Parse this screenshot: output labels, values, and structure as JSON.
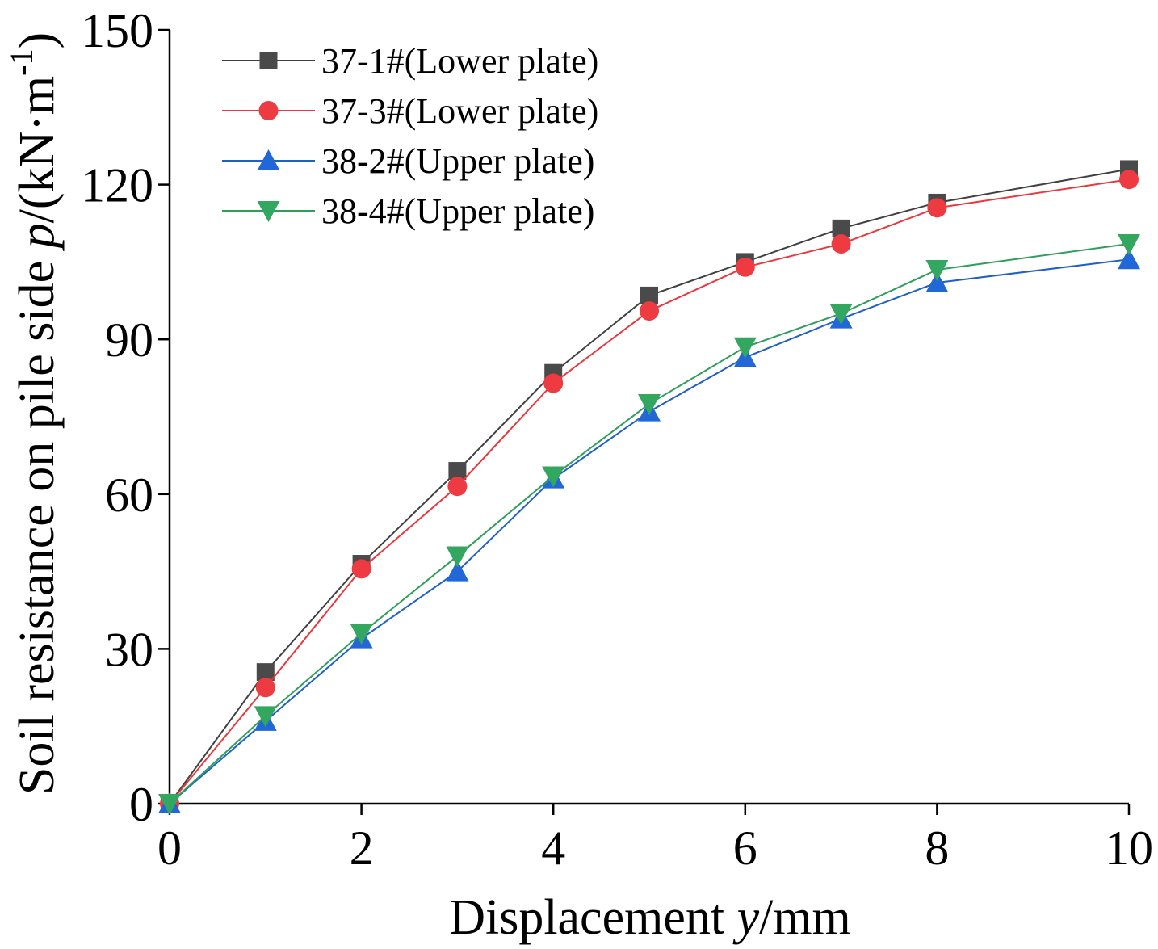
{
  "chart_data": {
    "type": "line",
    "x": [
      0,
      1,
      2,
      3,
      4,
      5,
      6,
      7,
      8,
      10
    ],
    "series": [
      {
        "name": "37-1#(Lower plate)",
        "marker": "square",
        "color": "#404040",
        "marker_color": "#4a4a4a",
        "values": [
          0,
          25.5,
          46.5,
          64.5,
          83.5,
          98.5,
          105,
          111.5,
          116.5,
          123
        ]
      },
      {
        "name": "37-3#(Lower plate)",
        "marker": "circle",
        "color": "#e8383d",
        "marker_color": "#ee3b41",
        "values": [
          0,
          22.5,
          45.5,
          61.5,
          81.5,
          95.5,
          104,
          108.5,
          115.5,
          121
        ]
      },
      {
        "name": "38-2#(Upper plate)",
        "marker": "triangle-up",
        "color": "#1f5fc8",
        "marker_color": "#2167d8",
        "values": [
          0,
          16,
          32,
          45,
          63,
          76,
          86.5,
          94,
          101,
          105.5
        ]
      },
      {
        "name": "38-4#(Upper plate)",
        "marker": "triangle-down",
        "color": "#2e9e5b",
        "marker_color": "#33a660",
        "values": [
          0,
          17,
          33,
          48,
          63.5,
          77.5,
          88.5,
          95,
          103.5,
          108.5
        ]
      }
    ],
    "xlabel_prefix": "Displacement ",
    "xlabel_var": "y",
    "xlabel_unit": "/mm",
    "ylabel_prefix": "Soil resistance on pile side ",
    "ylabel_var": "p",
    "ylabel_unit": "/(kN·m",
    "ylabel_exp": "-1",
    "ylabel_close": ")",
    "xlim": [
      0,
      10
    ],
    "ylim": [
      0,
      150
    ],
    "xticks": [
      0,
      2,
      4,
      6,
      8,
      10
    ],
    "yticks": [
      0,
      30,
      60,
      90,
      120,
      150
    ],
    "grid": false,
    "legend_position": "top-left"
  }
}
